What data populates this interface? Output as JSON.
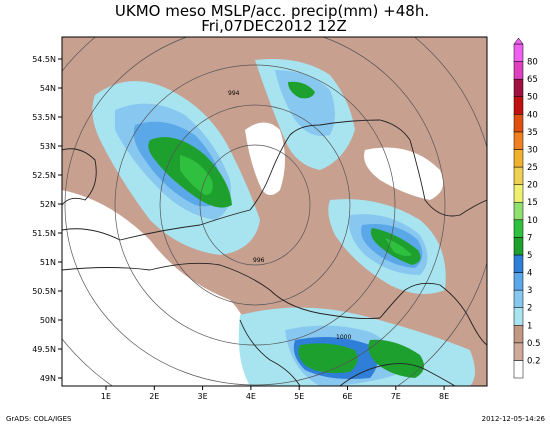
{
  "chart_data": {
    "type": "heatmap",
    "title_line1": "UKMO meso MSLP/acc. precip(mm) +48h.",
    "title_line2": "Fri,07DEC2012 12Z",
    "x_ticks": [
      "1E",
      "2E",
      "3E",
      "4E",
      "5E",
      "6E",
      "7E",
      "8E"
    ],
    "y_ticks": [
      "54.5N",
      "54N",
      "53.5N",
      "53N",
      "52.5N",
      "52N",
      "51.5N",
      "51N",
      "50.5N",
      "50N",
      "49.5N",
      "49N"
    ],
    "legend": {
      "levels": [
        "0.2",
        "0.5",
        "1",
        "2",
        "3",
        "4",
        "5",
        "7",
        "10",
        "15",
        "20",
        "25",
        "30",
        "35",
        "40",
        "50",
        "65",
        "80"
      ],
      "colors": [
        "#ffffff",
        "#d0aa98",
        "#c09884",
        "#a8e4f0",
        "#88c8f0",
        "#5aa8e8",
        "#2f7fd8",
        "#1ea02e",
        "#30c040",
        "#90e070",
        "#f0f070",
        "#f0d050",
        "#f0b030",
        "#f08020",
        "#e05010",
        "#c01010",
        "#a01040",
        "#e040c0",
        "#f060f0"
      ]
    },
    "isobar_labels": [
      "994",
      "996",
      "1000"
    ],
    "footer_left": "GrADS: COLA/IGES",
    "footer_right": "2012-12-05-14:26"
  }
}
